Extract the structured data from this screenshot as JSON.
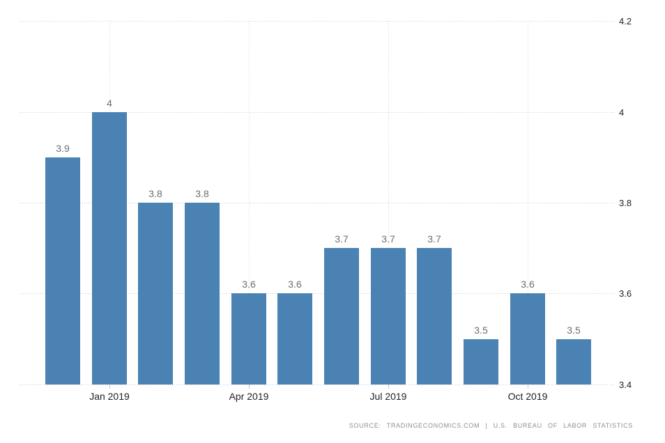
{
  "chart_data": {
    "type": "bar",
    "title": "",
    "xlabel": "",
    "ylabel": "",
    "values": [
      3.9,
      4,
      3.8,
      3.8,
      3.6,
      3.6,
      3.7,
      3.7,
      3.7,
      3.5,
      3.6,
      3.5
    ],
    "bar_labels": [
      "3.9",
      "4",
      "3.8",
      "3.8",
      "3.6",
      "3.6",
      "3.7",
      "3.7",
      "3.7",
      "3.5",
      "3.6",
      "3.5"
    ],
    "x_ticks": [
      {
        "bar_index": 1,
        "label": "Jan 2019"
      },
      {
        "bar_index": 4,
        "label": "Apr 2019"
      },
      {
        "bar_index": 7,
        "label": "Jul 2019"
      },
      {
        "bar_index": 10,
        "label": "Oct 2019"
      }
    ],
    "y_ticks": [
      {
        "value": 4.2,
        "label": "4.2"
      },
      {
        "value": 4,
        "label": "4"
      },
      {
        "value": 3.8,
        "label": "3.8"
      },
      {
        "value": 3.6,
        "label": "3.6"
      },
      {
        "value": 3.4,
        "label": "3.4"
      }
    ],
    "ylim": [
      3.4,
      4.2
    ],
    "grid": "dotted",
    "legend_position": "none",
    "bar_color": "#4a82b4",
    "value_label_color": "#6a6d70",
    "axis_label_color": "#1f1f1f",
    "grid_color": "#cccccc"
  },
  "source": {
    "text": "SOURCE: TRADINGECONOMICS.COM | U.S. BUREAU OF LABOR STATISTICS"
  }
}
